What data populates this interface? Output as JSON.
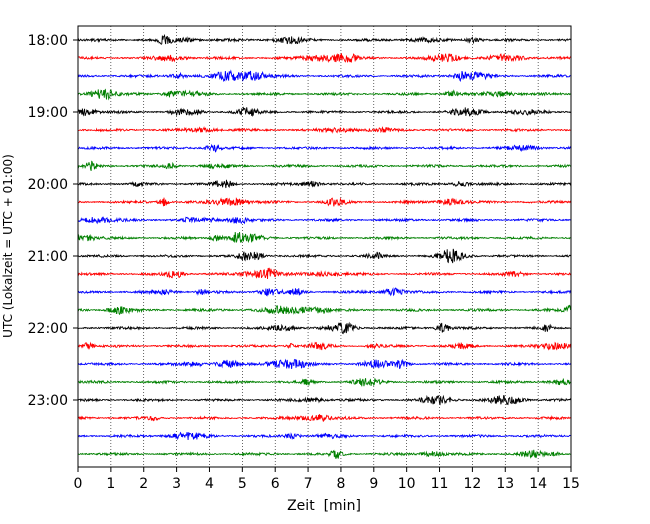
{
  "chart_data": {
    "type": "line",
    "title": "",
    "xlabel": "Zeit  [min]",
    "ylabel": "UTC (Lokalzeit = UTC + 01:00)",
    "xlim": [
      0,
      15
    ],
    "x_ticks": [
      0,
      1,
      2,
      3,
      4,
      5,
      6,
      7,
      8,
      9,
      10,
      11,
      12,
      13,
      14,
      15
    ],
    "y_tick_labels": [
      "18:00",
      "19:00",
      "20:00",
      "21:00",
      "22:00",
      "23:00"
    ],
    "grid": "vertical dotted lines at each minute",
    "trace_interval_min": 15,
    "start": "18:00",
    "colors": [
      "#000000",
      "#ff0000",
      "#0000ff",
      "#008000"
    ],
    "traces": [
      {
        "label": "18:00",
        "color": "#000000"
      },
      {
        "label": "18:15",
        "color": "#ff0000"
      },
      {
        "label": "18:30",
        "color": "#0000ff"
      },
      {
        "label": "18:45",
        "color": "#008000"
      },
      {
        "label": "19:00",
        "color": "#000000"
      },
      {
        "label": "19:15",
        "color": "#ff0000"
      },
      {
        "label": "19:30",
        "color": "#0000ff"
      },
      {
        "label": "19:45",
        "color": "#008000"
      },
      {
        "label": "20:00",
        "color": "#000000"
      },
      {
        "label": "20:15",
        "color": "#ff0000"
      },
      {
        "label": "20:30",
        "color": "#0000ff"
      },
      {
        "label": "20:45",
        "color": "#008000"
      },
      {
        "label": "21:00",
        "color": "#000000"
      },
      {
        "label": "21:15",
        "color": "#ff0000"
      },
      {
        "label": "21:30",
        "color": "#0000ff"
      },
      {
        "label": "21:45",
        "color": "#008000"
      },
      {
        "label": "22:00",
        "color": "#000000"
      },
      {
        "label": "22:15",
        "color": "#ff0000"
      },
      {
        "label": "22:30",
        "color": "#0000ff"
      },
      {
        "label": "22:45",
        "color": "#008000"
      },
      {
        "label": "23:00",
        "color": "#000000"
      },
      {
        "label": "23:15",
        "color": "#ff0000"
      },
      {
        "label": "23:30",
        "color": "#0000ff"
      },
      {
        "label": "23:45",
        "color": "#008000"
      }
    ]
  }
}
